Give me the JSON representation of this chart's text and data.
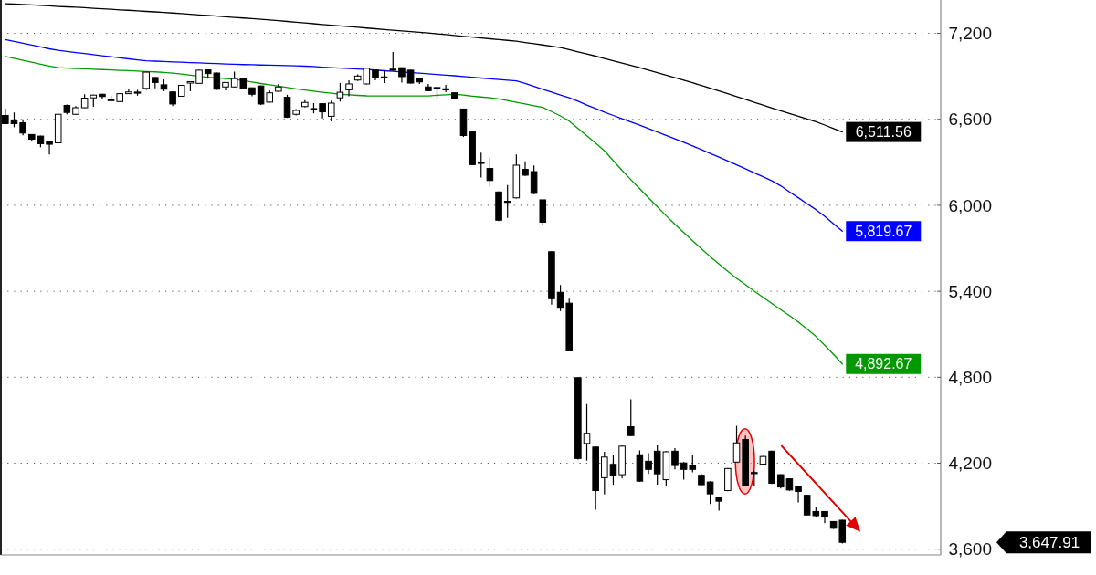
{
  "chart_data": {
    "type": "candlestick",
    "color": "#000000",
    "categories": [
      null,
      null,
      null,
      null,
      null,
      null,
      null,
      null,
      null,
      null,
      null,
      null,
      null,
      null,
      null,
      null,
      null,
      null,
      null,
      null,
      null,
      null,
      null,
      null,
      null,
      null,
      null,
      null,
      null,
      null,
      null,
      null,
      null,
      null,
      null,
      null,
      null,
      null,
      null,
      null,
      null,
      null,
      null,
      null,
      null,
      null,
      null,
      null,
      null,
      null,
      null,
      null,
      null,
      null,
      null,
      null,
      null,
      null,
      null,
      null,
      null,
      null,
      null,
      null,
      null,
      null,
      null,
      null,
      null,
      null,
      null,
      null,
      null,
      null,
      null,
      null,
      null,
      null,
      null,
      null,
      null,
      null,
      null,
      null,
      null,
      null,
      null,
      null,
      null,
      null,
      null,
      null,
      null,
      null,
      null,
      null
    ],
    "ohlc": [
      [
        6627,
        6676,
        6565,
        6570
      ],
      [
        6596,
        6648,
        6545,
        6570
      ],
      [
        6576,
        6600,
        6488,
        6504
      ],
      [
        6494,
        6496,
        6446,
        6461
      ],
      [
        6483,
        6486,
        6405,
        6430
      ],
      [
        6442,
        6445,
        6354,
        6426
      ],
      [
        6436,
        6638,
        6432,
        6635
      ],
      [
        6697,
        6703,
        6635,
        6648
      ],
      [
        6635,
        6693,
        6632,
        6681
      ],
      [
        6681,
        6775,
        6678,
        6748
      ],
      [
        6750,
        6772,
        6687,
        6769
      ],
      [
        6775,
        6778,
        6738,
        6759
      ],
      [
        6738,
        6765,
        6730,
        6733
      ],
      [
        6724,
        6782,
        6720,
        6779
      ],
      [
        6779,
        6812,
        6776,
        6791
      ],
      [
        6790,
        6806,
        6765,
        6787
      ],
      [
        6816,
        6932,
        6806,
        6929
      ],
      [
        6892,
        6895,
        6816,
        6857
      ],
      [
        6841,
        6878,
        6796,
        6810
      ],
      [
        6791,
        6794,
        6693,
        6707
      ],
      [
        6761,
        6840,
        6757,
        6837
      ],
      [
        6853,
        6866,
        6796,
        6863
      ],
      [
        6851,
        6946,
        6848,
        6943
      ],
      [
        6945,
        6948,
        6884,
        6919
      ],
      [
        6923,
        6926,
        6806,
        6810
      ],
      [
        6826,
        6860,
        6802,
        6857
      ],
      [
        6826,
        6933,
        6822,
        6884
      ],
      [
        6882,
        6885,
        6812,
        6816
      ],
      [
        6820,
        6823,
        6761,
        6775
      ],
      [
        6833,
        6836,
        6700,
        6707
      ],
      [
        6720,
        6802,
        6716,
        6785
      ],
      [
        6796,
        6847,
        6793,
        6826
      ],
      [
        6754,
        6771,
        6610,
        6615
      ],
      [
        6635,
        6672,
        6627,
        6662
      ],
      [
        6689,
        6734,
        6683,
        6718
      ],
      [
        6675,
        6713,
        6642,
        6672
      ],
      [
        6709,
        6712,
        6607,
        6652
      ],
      [
        6621,
        6730,
        6586,
        6713
      ],
      [
        6750,
        6853,
        6724,
        6789
      ],
      [
        6806,
        6872,
        6761,
        6847
      ],
      [
        6874,
        6913,
        6867,
        6902
      ],
      [
        6847,
        6960,
        6843,
        6956
      ],
      [
        6943,
        6946,
        6872,
        6888
      ],
      [
        6896,
        6939,
        6853,
        6893
      ],
      [
        6950,
        7070,
        6939,
        6946
      ],
      [
        6960,
        6963,
        6857,
        6898
      ],
      [
        6943,
        6946,
        6849,
        6853
      ],
      [
        6888,
        6891,
        6847,
        6861
      ],
      [
        6826,
        6847,
        6796,
        6800
      ],
      [
        6822,
        6826,
        6744,
        6812
      ],
      [
        6813,
        6841,
        6789,
        6810
      ],
      [
        6785,
        6788,
        6740,
        6744
      ],
      [
        6672,
        6675,
        6477,
        6487
      ],
      [
        6514,
        6517,
        6280,
        6284
      ],
      [
        6300,
        6368,
        6194,
        6295
      ],
      [
        6257,
        6333,
        6132,
        6173
      ],
      [
        6093,
        6096,
        5890,
        5896
      ],
      [
        6028,
        6142,
        5912,
        6022
      ],
      [
        6052,
        6354,
        6048,
        6280
      ],
      [
        6251,
        6307,
        6205,
        6210
      ],
      [
        6235,
        6278,
        6078,
        6083
      ],
      [
        6038,
        6040,
        5861,
        5882
      ],
      [
        5676,
        5680,
        5307,
        5348
      ],
      [
        5393,
        5444,
        5262,
        5282
      ],
      [
        5317,
        5348,
        4980,
        4984
      ],
      [
        4797,
        4800,
        4225,
        4233
      ],
      [
        4338,
        4613,
        4218,
        4409
      ],
      [
        4313,
        4316,
        3876,
        4009
      ],
      [
        4099,
        4280,
        3982,
        4243
      ],
      [
        4192,
        4255,
        4050,
        4116
      ],
      [
        4120,
        4325,
        4095,
        4319
      ],
      [
        4455,
        4646,
        4390,
        4393
      ],
      [
        4259,
        4290,
        4070,
        4075
      ],
      [
        4214,
        4270,
        4126,
        4157
      ],
      [
        4284,
        4325,
        4050,
        4126
      ],
      [
        4085,
        4285,
        4044,
        4280
      ],
      [
        4284,
        4305,
        4157,
        4184
      ],
      [
        4202,
        4208,
        4085,
        4157
      ],
      [
        4184,
        4255,
        4136,
        4157
      ],
      [
        4116,
        4126,
        4048,
        4050
      ],
      [
        4069,
        4075,
        3915,
        3986
      ],
      [
        3962,
        3965,
        3869,
        3935
      ],
      [
        4009,
        4167,
        4005,
        4163
      ],
      [
        4208,
        4461,
        4205,
        4342
      ],
      [
        4366,
        4393,
        4040,
        4044
      ],
      [
        4135,
        4147,
        4044,
        4130
      ],
      [
        4194,
        4250,
        4188,
        4247
      ],
      [
        4284,
        4288,
        4055,
        4060
      ],
      [
        4120,
        4124,
        4023,
        4034
      ],
      [
        4091,
        4095,
        4008,
        4013
      ],
      [
        4038,
        4042,
        3927,
        4003
      ],
      [
        3976,
        3980,
        3835,
        3839
      ],
      [
        3863,
        3894,
        3828,
        3834
      ],
      [
        3863,
        3866,
        3781,
        3824
      ],
      [
        3793,
        3796,
        3742,
        3746
      ],
      [
        3802,
        3806,
        3640,
        3647.91
      ]
    ],
    "value_labels": [
      null,
      null,
      null,
      null,
      null,
      null,
      null,
      null,
      null,
      null,
      null,
      null,
      null,
      null,
      null,
      null,
      null,
      null,
      null,
      null,
      null,
      null,
      null,
      null,
      null,
      null,
      null,
      null,
      null,
      null,
      null,
      null,
      null,
      null,
      null,
      null,
      null,
      null,
      null,
      null,
      null,
      null,
      null,
      null,
      null,
      null,
      null,
      null,
      null,
      null,
      null,
      null,
      null,
      null,
      null,
      null,
      null,
      null,
      null,
      null,
      null,
      null,
      null,
      null,
      null,
      null,
      null,
      null,
      null,
      null,
      null,
      null,
      null,
      null,
      null,
      null,
      null,
      null,
      null,
      null,
      null,
      null,
      null,
      null,
      null,
      null,
      null,
      null,
      null,
      null,
      null,
      null,
      null,
      null,
      null,
      "3,647.91"
    ],
    "series": [
      {
        "type": "line",
        "color": "#000000",
        "values": [
          7407,
          7404,
          7401,
          7398,
          7395,
          7392,
          7388,
          7385,
          7382,
          7379,
          7375,
          7372,
          7368,
          7364,
          7361,
          7357,
          7353,
          7350,
          7346,
          7342,
          7338,
          7333,
          7329,
          7325,
          7320,
          7316,
          7311,
          7307,
          7303,
          7298,
          7293,
          7288,
          7283,
          7278,
          7273,
          7267,
          7262,
          7257,
          7252,
          7247,
          7242,
          7237,
          7232,
          7227,
          7222,
          7217,
          7212,
          7207,
          7202,
          7196,
          7191,
          7185,
          7179,
          7174,
          7168,
          7162,
          7156,
          7151,
          7145,
          7136,
          7128,
          7119,
          7110,
          7101,
          7086,
          7071,
          7056,
          7041,
          7025,
          7009,
          6993,
          6976,
          6960,
          6943,
          6926,
          6908,
          6890,
          6873,
          6855,
          6836,
          6817,
          6798,
          6779,
          6759,
          6739,
          6719,
          6699,
          6679,
          6659,
          6640,
          6621,
          6602,
          6583,
          6560,
          6536,
          6511.56
        ],
        "value_labels": [
          null,
          null,
          null,
          null,
          null,
          null,
          null,
          null,
          null,
          null,
          null,
          null,
          null,
          null,
          null,
          null,
          null,
          null,
          null,
          null,
          null,
          null,
          null,
          null,
          null,
          null,
          null,
          null,
          null,
          null,
          null,
          null,
          null,
          null,
          null,
          null,
          null,
          null,
          null,
          null,
          null,
          null,
          null,
          null,
          null,
          null,
          null,
          null,
          null,
          null,
          null,
          null,
          null,
          null,
          null,
          null,
          null,
          null,
          null,
          null,
          null,
          null,
          null,
          null,
          null,
          null,
          null,
          null,
          null,
          null,
          null,
          null,
          null,
          null,
          null,
          null,
          null,
          null,
          null,
          null,
          null,
          null,
          null,
          null,
          null,
          null,
          null,
          null,
          null,
          null,
          null,
          null,
          null,
          null,
          null,
          "6,511.56"
        ]
      },
      {
        "type": "line",
        "color": "#0000ff",
        "values": [
          7157,
          7144,
          7131,
          7118,
          7105,
          7092,
          7081,
          7073,
          7066,
          7059,
          7051,
          7044,
          7037,
          7029,
          7022,
          7015,
          7009,
          7006,
          7004,
          7001,
          6999,
          6996,
          6994,
          6991,
          6989,
          6986,
          6984,
          6982,
          6981,
          6979,
          6978,
          6976,
          6975,
          6973,
          6971,
          6968,
          6964,
          6961,
          6958,
          6954,
          6951,
          6948,
          6944,
          6939,
          6935,
          6930,
          6926,
          6922,
          6917,
          6913,
          6908,
          6904,
          6899,
          6894,
          6888,
          6883,
          6878,
          6873,
          6868,
          6850,
          6830,
          6810,
          6790,
          6770,
          6750,
          6726,
          6700,
          6675,
          6650,
          6627,
          6604,
          6582,
          6559,
          6536,
          6512,
          6488,
          6464,
          6440,
          6415,
          6389,
          6362,
          6336,
          6309,
          6282,
          6255,
          6227,
          6199,
          6171,
          6136,
          6094,
          6053,
          6011,
          5970,
          5923,
          5871,
          5819.67
        ],
        "value_labels": [
          null,
          null,
          null,
          null,
          null,
          null,
          null,
          null,
          null,
          null,
          null,
          null,
          null,
          null,
          null,
          null,
          null,
          null,
          null,
          null,
          null,
          null,
          null,
          null,
          null,
          null,
          null,
          null,
          null,
          null,
          null,
          null,
          null,
          null,
          null,
          null,
          null,
          null,
          null,
          null,
          null,
          null,
          null,
          null,
          null,
          null,
          null,
          null,
          null,
          null,
          null,
          null,
          null,
          null,
          null,
          null,
          null,
          null,
          null,
          null,
          null,
          null,
          null,
          null,
          null,
          null,
          null,
          null,
          null,
          null,
          null,
          null,
          null,
          null,
          null,
          null,
          null,
          null,
          null,
          null,
          null,
          null,
          null,
          null,
          null,
          null,
          null,
          null,
          null,
          null,
          null,
          null,
          null,
          null,
          null,
          "5,819.67"
        ]
      },
      {
        "type": "line",
        "color": "#009900",
        "values": [
          7039,
          7026,
          7012,
          6999,
          6985,
          6972,
          6960,
          6957,
          6955,
          6952,
          6950,
          6947,
          6945,
          6942,
          6940,
          6937,
          6934,
          6931,
          6927,
          6923,
          6916,
          6908,
          6900,
          6894,
          null,
          6884,
          6879,
          6870,
          6860,
          6850,
          6841,
          6832,
          6822,
          6813,
          6804,
          6796,
          6789,
          6782,
          6775,
          6771,
          6767,
          6764,
          6763,
          6763,
          6763,
          6763,
          6763,
          6763,
          6763,
          6768,
          6771,
          6775,
          6769,
          6762,
          6756,
          6750,
          6743,
          6731,
          6719,
          6707,
          6695,
          6683,
          6654,
          6624,
          6587,
          6536,
          6485,
          6434,
          6380,
          6312,
          6243,
          6179,
          6116,
          6052,
          5990,
          5927,
          5867,
          5810,
          5753,
          5697,
          5642,
          5590,
          5540,
          5490,
          5447,
          5401,
          5358,
          5315,
          5272,
          5230,
          5186,
          5136,
          5085,
          5023,
          4960,
          4892.67
        ],
        "value_labels": [
          null,
          null,
          null,
          null,
          null,
          null,
          null,
          null,
          null,
          null,
          null,
          null,
          null,
          null,
          null,
          null,
          null,
          null,
          null,
          null,
          null,
          null,
          null,
          null,
          null,
          null,
          null,
          null,
          null,
          null,
          null,
          null,
          null,
          null,
          null,
          null,
          null,
          null,
          null,
          null,
          null,
          null,
          null,
          null,
          null,
          null,
          null,
          null,
          null,
          null,
          null,
          null,
          null,
          null,
          null,
          null,
          null,
          null,
          null,
          null,
          null,
          null,
          null,
          null,
          null,
          null,
          null,
          null,
          null,
          null,
          null,
          null,
          null,
          null,
          null,
          null,
          null,
          null,
          null,
          null,
          null,
          null,
          null,
          null,
          null,
          null,
          null,
          null,
          null,
          null,
          null,
          null,
          null,
          null,
          null,
          "4,892.67"
        ]
      }
    ],
    "ylim": [
      3560,
      7420
    ],
    "yticks": [
      {
        "value": 3600,
        "label": "3,600"
      },
      {
        "value": 4200,
        "label": "4,200"
      },
      {
        "value": 4800,
        "label": "4,800"
      },
      {
        "value": 5400,
        "label": "5,400"
      },
      {
        "value": 6000,
        "label": "6,000"
      },
      {
        "value": 6600,
        "label": "6,600"
      },
      {
        "value": 7200,
        "label": "7,200"
      }
    ],
    "grid": "y"
  }
}
